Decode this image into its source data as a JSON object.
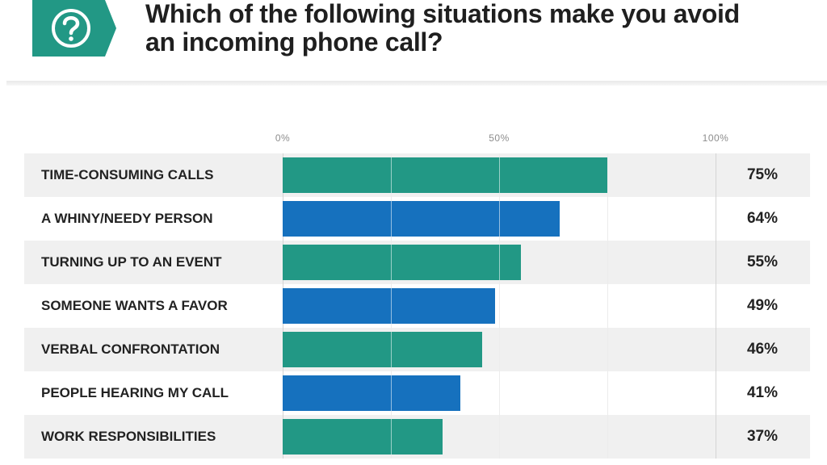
{
  "header": {
    "icon": "question-mark-icon",
    "title_line1": "Which of the following situations make you avoid",
    "title_line2": "an incoming phone call?"
  },
  "colors": {
    "teal": "#229885",
    "blue": "#1671be",
    "badge": "#229885"
  },
  "chart_data": {
    "type": "bar",
    "orientation": "horizontal",
    "title": "Which of the following situations make you avoid an incoming phone call?",
    "xlim": [
      0,
      100
    ],
    "x_ticks": [
      "0%",
      "50%",
      "100%"
    ],
    "grid": true,
    "categories": [
      "TIME-CONSUMING CALLS",
      "A WHINY/NEEDY PERSON",
      "TURNING UP TO AN EVENT",
      "SOMEONE WANTS A FAVOR",
      "VERBAL CONFRONTATION",
      "PEOPLE HEARING MY CALL",
      "WORK RESPONSIBILITIES"
    ],
    "values": [
      75,
      64,
      55,
      49,
      46,
      41,
      37
    ],
    "value_labels": [
      "75%",
      "64%",
      "55%",
      "49%",
      "46%",
      "41%",
      "37%"
    ],
    "bar_colors": [
      "teal",
      "blue",
      "teal",
      "blue",
      "teal",
      "blue",
      "teal"
    ]
  }
}
